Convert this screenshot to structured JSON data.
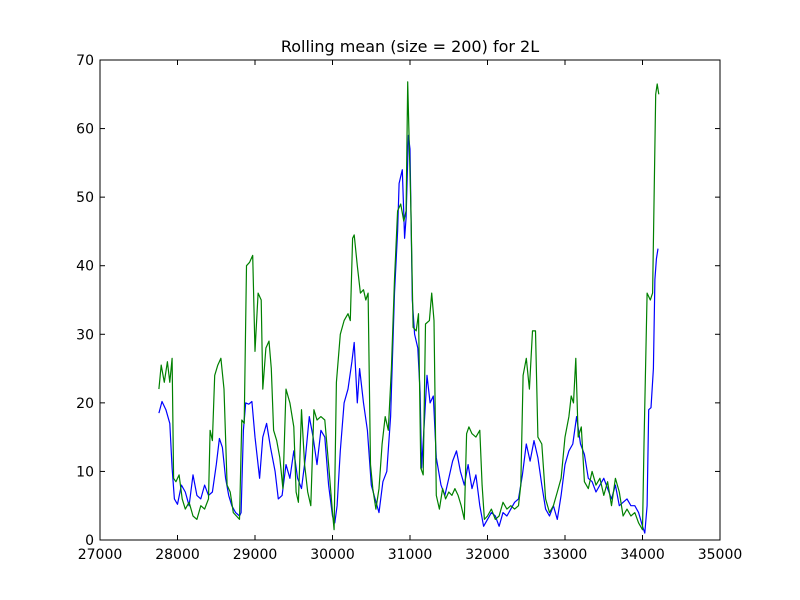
{
  "chart_data": {
    "type": "line",
    "title": "Rolling mean (size = 200) for 2L",
    "xlabel": "",
    "ylabel": "",
    "xlim": [
      27000,
      35000
    ],
    "ylim": [
      0,
      70
    ],
    "xticks": [
      27000,
      28000,
      29000,
      30000,
      31000,
      32000,
      33000,
      34000,
      35000
    ],
    "yticks": [
      0,
      10,
      20,
      30,
      40,
      50,
      60,
      70
    ],
    "grid": false,
    "legend": "none",
    "series": [
      {
        "color": "#0000ff",
        "points": [
          [
            27760,
            18.5
          ],
          [
            27800,
            20.2
          ],
          [
            27850,
            19.0
          ],
          [
            27900,
            17.0
          ],
          [
            27930,
            10.5
          ],
          [
            27960,
            6.0
          ],
          [
            28000,
            5.2
          ],
          [
            28050,
            8.0
          ],
          [
            28100,
            7.0
          ],
          [
            28150,
            5.0
          ],
          [
            28200,
            9.5
          ],
          [
            28250,
            6.5
          ],
          [
            28300,
            6.0
          ],
          [
            28350,
            8.0
          ],
          [
            28400,
            6.5
          ],
          [
            28450,
            7.0
          ],
          [
            28500,
            11.0
          ],
          [
            28540,
            14.8
          ],
          [
            28580,
            13.5
          ],
          [
            28620,
            9.0
          ],
          [
            28660,
            6.5
          ],
          [
            28700,
            5.0
          ],
          [
            28750,
            4.0
          ],
          [
            28800,
            3.5
          ],
          [
            28820,
            4.0
          ],
          [
            28850,
            16.0
          ],
          [
            28880,
            20.0
          ],
          [
            28920,
            19.8
          ],
          [
            28960,
            20.2
          ],
          [
            29000,
            15.0
          ],
          [
            29030,
            12.0
          ],
          [
            29060,
            9.0
          ],
          [
            29100,
            15.0
          ],
          [
            29150,
            17.0
          ],
          [
            29200,
            13.5
          ],
          [
            29260,
            10.0
          ],
          [
            29300,
            6.0
          ],
          [
            29350,
            6.5
          ],
          [
            29400,
            11.0
          ],
          [
            29450,
            9.0
          ],
          [
            29500,
            13.0
          ],
          [
            29550,
            9.0
          ],
          [
            29600,
            7.5
          ],
          [
            29650,
            12.0
          ],
          [
            29700,
            18.0
          ],
          [
            29750,
            15.0
          ],
          [
            29800,
            11.0
          ],
          [
            29850,
            16.0
          ],
          [
            29900,
            15.0
          ],
          [
            29950,
            8.0
          ],
          [
            30000,
            3.5
          ],
          [
            30030,
            2.5
          ],
          [
            30060,
            5.0
          ],
          [
            30100,
            13.0
          ],
          [
            30150,
            20.0
          ],
          [
            30200,
            22.0
          ],
          [
            30250,
            26.0
          ],
          [
            30280,
            28.8
          ],
          [
            30320,
            20.0
          ],
          [
            30350,
            25.0
          ],
          [
            30400,
            20.0
          ],
          [
            30450,
            16.0
          ],
          [
            30500,
            8.0
          ],
          [
            30550,
            6.0
          ],
          [
            30600,
            4.0
          ],
          [
            30650,
            8.5
          ],
          [
            30700,
            10.0
          ],
          [
            30750,
            18.0
          ],
          [
            30800,
            36.0
          ],
          [
            30840,
            45.0
          ],
          [
            30860,
            52.0
          ],
          [
            30900,
            54.0
          ],
          [
            30930,
            44.0
          ],
          [
            30950,
            47.0
          ],
          [
            30980,
            59.0
          ],
          [
            31000,
            57.0
          ],
          [
            31030,
            35.0
          ],
          [
            31060,
            30.0
          ],
          [
            31100,
            28.0
          ],
          [
            31130,
            21.5
          ],
          [
            31150,
            10.5
          ],
          [
            31180,
            16.0
          ],
          [
            31220,
            24.0
          ],
          [
            31260,
            20.0
          ],
          [
            31300,
            21.0
          ],
          [
            31340,
            12.0
          ],
          [
            31400,
            8.0
          ],
          [
            31450,
            6.5
          ],
          [
            31500,
            9.0
          ],
          [
            31550,
            11.5
          ],
          [
            31600,
            13.0
          ],
          [
            31650,
            10.0
          ],
          [
            31700,
            8.0
          ],
          [
            31750,
            11.0
          ],
          [
            31800,
            7.5
          ],
          [
            31850,
            9.5
          ],
          [
            31900,
            5.0
          ],
          [
            31950,
            2.0
          ],
          [
            32000,
            3.0
          ],
          [
            32050,
            4.0
          ],
          [
            32100,
            3.5
          ],
          [
            32150,
            2.0
          ],
          [
            32200,
            4.0
          ],
          [
            32250,
            3.5
          ],
          [
            32300,
            4.5
          ],
          [
            32350,
            5.5
          ],
          [
            32400,
            6.0
          ],
          [
            32450,
            9.5
          ],
          [
            32500,
            14.0
          ],
          [
            32550,
            11.5
          ],
          [
            32600,
            14.5
          ],
          [
            32650,
            12.0
          ],
          [
            32700,
            8.0
          ],
          [
            32750,
            4.5
          ],
          [
            32800,
            3.5
          ],
          [
            32850,
            5.0
          ],
          [
            32900,
            3.0
          ],
          [
            32950,
            6.5
          ],
          [
            33000,
            11.0
          ],
          [
            33050,
            13.0
          ],
          [
            33100,
            14.0
          ],
          [
            33150,
            18.0
          ],
          [
            33200,
            14.0
          ],
          [
            33250,
            12.5
          ],
          [
            33300,
            9.0
          ],
          [
            33350,
            8.5
          ],
          [
            33400,
            7.0
          ],
          [
            33450,
            8.0
          ],
          [
            33500,
            9.0
          ],
          [
            33550,
            7.5
          ],
          [
            33600,
            6.0
          ],
          [
            33650,
            8.0
          ],
          [
            33700,
            5.0
          ],
          [
            33750,
            5.5
          ],
          [
            33800,
            6.0
          ],
          [
            33850,
            5.0
          ],
          [
            33900,
            5.0
          ],
          [
            33950,
            4.0
          ],
          [
            34000,
            2.0
          ],
          [
            34030,
            1.0
          ],
          [
            34060,
            5.0
          ],
          [
            34080,
            19.0
          ],
          [
            34110,
            19.3
          ],
          [
            34140,
            25.0
          ],
          [
            34160,
            38.0
          ],
          [
            34180,
            41.0
          ],
          [
            34200,
            42.5
          ]
        ]
      },
      {
        "color": "#008000",
        "points": [
          [
            27760,
            22.0
          ],
          [
            27790,
            25.5
          ],
          [
            27830,
            23.0
          ],
          [
            27870,
            26.0
          ],
          [
            27900,
            23.0
          ],
          [
            27930,
            26.5
          ],
          [
            27950,
            9.0
          ],
          [
            27980,
            8.5
          ],
          [
            28020,
            9.5
          ],
          [
            28060,
            6.0
          ],
          [
            28100,
            4.5
          ],
          [
            28150,
            5.5
          ],
          [
            28200,
            3.5
          ],
          [
            28250,
            3.0
          ],
          [
            28300,
            5.0
          ],
          [
            28350,
            4.5
          ],
          [
            28400,
            6.0
          ],
          [
            28420,
            16.0
          ],
          [
            28450,
            14.5
          ],
          [
            28480,
            24.0
          ],
          [
            28520,
            25.5
          ],
          [
            28560,
            26.5
          ],
          [
            28600,
            22.0
          ],
          [
            28640,
            8.0
          ],
          [
            28680,
            7.0
          ],
          [
            28720,
            4.0
          ],
          [
            28760,
            3.5
          ],
          [
            28800,
            3.0
          ],
          [
            28830,
            17.5
          ],
          [
            28860,
            17.0
          ],
          [
            28890,
            40.0
          ],
          [
            28930,
            40.5
          ],
          [
            28970,
            41.5
          ],
          [
            29000,
            27.5
          ],
          [
            29040,
            36.0
          ],
          [
            29080,
            35.0
          ],
          [
            29100,
            22.0
          ],
          [
            29140,
            28.0
          ],
          [
            29180,
            29.0
          ],
          [
            29210,
            25.0
          ],
          [
            29240,
            16.0
          ],
          [
            29280,
            14.5
          ],
          [
            29320,
            12.0
          ],
          [
            29360,
            7.5
          ],
          [
            29400,
            22.0
          ],
          [
            29450,
            20.0
          ],
          [
            29500,
            16.5
          ],
          [
            29530,
            7.0
          ],
          [
            29560,
            5.5
          ],
          [
            29600,
            19.0
          ],
          [
            29640,
            11.0
          ],
          [
            29680,
            7.0
          ],
          [
            29720,
            5.0
          ],
          [
            29760,
            19.0
          ],
          [
            29800,
            17.5
          ],
          [
            29850,
            18.0
          ],
          [
            29900,
            17.5
          ],
          [
            29950,
            11.0
          ],
          [
            30000,
            4.0
          ],
          [
            30020,
            1.5
          ],
          [
            30050,
            23.0
          ],
          [
            30100,
            30.0
          ],
          [
            30150,
            32.0
          ],
          [
            30200,
            33.0
          ],
          [
            30230,
            32.0
          ],
          [
            30260,
            44.0
          ],
          [
            30280,
            44.5
          ],
          [
            30320,
            40.0
          ],
          [
            30360,
            36.0
          ],
          [
            30400,
            36.5
          ],
          [
            30430,
            35.0
          ],
          [
            30460,
            36.0
          ],
          [
            30490,
            11.0
          ],
          [
            30520,
            7.5
          ],
          [
            30560,
            4.5
          ],
          [
            30600,
            7.5
          ],
          [
            30640,
            14.0
          ],
          [
            30680,
            18.0
          ],
          [
            30720,
            16.0
          ],
          [
            30760,
            25.0
          ],
          [
            30800,
            38.0
          ],
          [
            30840,
            48.0
          ],
          [
            30880,
            49.0
          ],
          [
            30920,
            46.5
          ],
          [
            30950,
            48.0
          ],
          [
            30970,
            66.8
          ],
          [
            30990,
            58.0
          ],
          [
            31010,
            49.0
          ],
          [
            31040,
            31.0
          ],
          [
            31080,
            30.5
          ],
          [
            31110,
            33.0
          ],
          [
            31140,
            10.5
          ],
          [
            31170,
            9.5
          ],
          [
            31200,
            31.5
          ],
          [
            31250,
            32.0
          ],
          [
            31280,
            36.0
          ],
          [
            31310,
            32.0
          ],
          [
            31340,
            6.5
          ],
          [
            31380,
            4.5
          ],
          [
            31420,
            7.5
          ],
          [
            31460,
            6.0
          ],
          [
            31500,
            7.0
          ],
          [
            31540,
            6.5
          ],
          [
            31580,
            7.5
          ],
          [
            31620,
            6.5
          ],
          [
            31660,
            5.0
          ],
          [
            31700,
            3.0
          ],
          [
            31730,
            15.5
          ],
          [
            31760,
            16.5
          ],
          [
            31800,
            15.5
          ],
          [
            31850,
            15.0
          ],
          [
            31900,
            16.0
          ],
          [
            31930,
            8.0
          ],
          [
            31960,
            3.0
          ],
          [
            32000,
            3.5
          ],
          [
            32050,
            4.5
          ],
          [
            32100,
            3.0
          ],
          [
            32150,
            3.5
          ],
          [
            32200,
            5.5
          ],
          [
            32250,
            4.5
          ],
          [
            32300,
            5.0
          ],
          [
            32350,
            4.5
          ],
          [
            32400,
            5.0
          ],
          [
            32430,
            8.0
          ],
          [
            32460,
            24.0
          ],
          [
            32500,
            26.5
          ],
          [
            32540,
            22.0
          ],
          [
            32580,
            30.5
          ],
          [
            32620,
            30.5
          ],
          [
            32650,
            15.0
          ],
          [
            32700,
            14.0
          ],
          [
            32750,
            6.0
          ],
          [
            32800,
            4.0
          ],
          [
            32850,
            5.0
          ],
          [
            32900,
            7.0
          ],
          [
            32950,
            9.0
          ],
          [
            33000,
            15.0
          ],
          [
            33050,
            18.0
          ],
          [
            33080,
            21.0
          ],
          [
            33110,
            20.0
          ],
          [
            33140,
            26.5
          ],
          [
            33170,
            15.0
          ],
          [
            33210,
            16.5
          ],
          [
            33250,
            8.5
          ],
          [
            33300,
            7.5
          ],
          [
            33350,
            10.0
          ],
          [
            33400,
            8.0
          ],
          [
            33450,
            9.0
          ],
          [
            33500,
            6.5
          ],
          [
            33550,
            8.5
          ],
          [
            33600,
            5.0
          ],
          [
            33650,
            9.0
          ],
          [
            33700,
            7.0
          ],
          [
            33750,
            3.5
          ],
          [
            33800,
            4.5
          ],
          [
            33850,
            3.5
          ],
          [
            33900,
            4.0
          ],
          [
            33950,
            2.5
          ],
          [
            34000,
            1.5
          ],
          [
            34020,
            14.0
          ],
          [
            34060,
            36.0
          ],
          [
            34100,
            35.0
          ],
          [
            34130,
            36.0
          ],
          [
            34150,
            50.0
          ],
          [
            34170,
            65.0
          ],
          [
            34190,
            66.5
          ],
          [
            34210,
            65.0
          ]
        ]
      }
    ]
  }
}
